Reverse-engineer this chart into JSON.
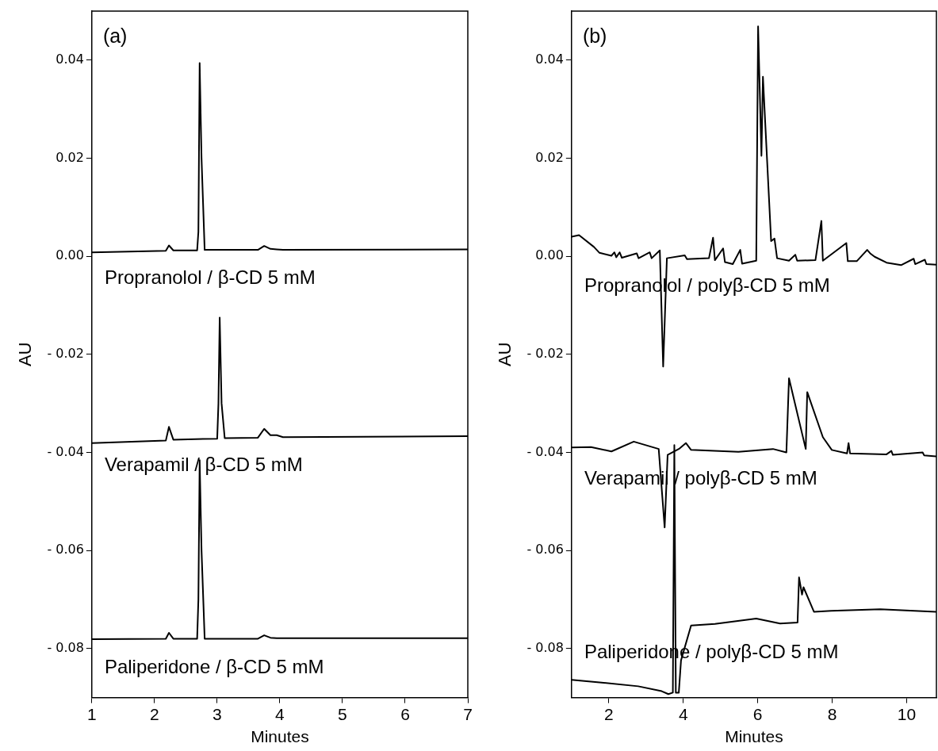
{
  "chart_data": [
    {
      "type": "line",
      "title": "(a)",
      "xlabel": "Minutes",
      "ylabel": "AU",
      "xlim": [
        1,
        7
      ],
      "xticks": [
        1,
        2,
        3,
        4,
        5,
        6,
        7
      ],
      "ylim": [
        -0.09,
        0.05
      ],
      "yticks": [
        {
          "value": 0.04,
          "label": "0.04"
        },
        {
          "value": 0.02,
          "label": "0.02"
        },
        {
          "value": 0,
          "label": "0.00"
        },
        {
          "value": -0.02,
          "label": "- 0.02"
        },
        {
          "value": -0.04,
          "label": "- 0.04"
        },
        {
          "value": -0.06,
          "label": "- 0.06"
        },
        {
          "value": -0.08,
          "label": "- 0.08"
        }
      ],
      "grid": false,
      "legend": false,
      "marker": "none",
      "line_style": "solid",
      "series": [
        {
          "name": "Propranolol / β-CD 5 mM",
          "color": "#000000",
          "x": [
            1,
            2.18,
            2.23,
            2.3,
            2.68,
            2.7,
            2.72,
            2.75,
            2.8,
            3.65,
            3.75,
            3.85,
            3.95,
            4.05,
            7
          ],
          "values": [
            0.0008,
            0.0011,
            0.0022,
            0.0012,
            0.0012,
            0.005,
            0.0394,
            0.02,
            0.0013,
            0.0013,
            0.0021,
            0.0015,
            0.0014,
            0.0013,
            0.0014
          ]
        },
        {
          "name": "Verapamil / β-CD 5 mM",
          "color": "#000000",
          "x": [
            1,
            2.18,
            2.23,
            2.3,
            3.0,
            3.02,
            3.04,
            3.07,
            3.12,
            3.65,
            3.75,
            3.85,
            3.95,
            4.05,
            7
          ],
          "values": [
            -0.0381,
            -0.0376,
            -0.0348,
            -0.0374,
            -0.0372,
            -0.03,
            -0.0125,
            -0.03,
            -0.0371,
            -0.037,
            -0.0352,
            -0.0365,
            -0.0365,
            -0.0369,
            -0.0367
          ]
        },
        {
          "name": "Paliperidone / β-CD 5 mM",
          "color": "#000000",
          "x": [
            1,
            2.18,
            2.23,
            2.3,
            2.68,
            2.7,
            2.72,
            2.75,
            2.8,
            3.65,
            3.75,
            3.85,
            3.95,
            4.05,
            7
          ],
          "values": [
            -0.0781,
            -0.078,
            -0.0768,
            -0.078,
            -0.078,
            -0.07,
            -0.0416,
            -0.06,
            -0.078,
            -0.078,
            -0.0773,
            -0.0778,
            -0.0779,
            -0.0779,
            -0.0779
          ]
        }
      ]
    },
    {
      "type": "line",
      "title": "(b)",
      "xlabel": "Minutes",
      "ylabel": "AU",
      "xlim": [
        1,
        10.8
      ],
      "xticks": [
        2,
        4,
        6,
        8,
        10
      ],
      "ylim": [
        -0.09,
        0.05
      ],
      "yticks": [
        {
          "value": 0.04,
          "label": "0.04"
        },
        {
          "value": 0.02,
          "label": "0.02"
        },
        {
          "value": 0,
          "label": "0.00"
        },
        {
          "value": -0.02,
          "label": "- 0.02"
        },
        {
          "value": -0.04,
          "label": "- 0.04"
        },
        {
          "value": -0.06,
          "label": "- 0.06"
        },
        {
          "value": -0.08,
          "label": "- 0.08"
        }
      ],
      "grid": false,
      "legend": false,
      "marker": "none",
      "line_style": "solid",
      "series": [
        {
          "name": "Propranolol / polyβ-CD 5 mM",
          "color": "#000000",
          "x": [
            1,
            1.2,
            1.6,
            1.75,
            2.07,
            2.15,
            2.2,
            2.29,
            2.35,
            2.75,
            2.8,
            3.1,
            3.15,
            3.37,
            3.46,
            3.56,
            4.04,
            4.1,
            4.69,
            4.8,
            4.85,
            5.07,
            5.12,
            5.33,
            5.53,
            5.58,
            5.96,
            6.01,
            6.1,
            6.14,
            6.36,
            6.45,
            6.52,
            6.84,
            7.01,
            7.06,
            7.55,
            7.71,
            7.75,
            8.38,
            8.42,
            8.66,
            8.94,
            9.02,
            9.14,
            9.46,
            9.85,
            10.19,
            10.23,
            10.49,
            10.53,
            10.79
          ],
          "values": [
            0.004,
            0.0043,
            0.0019,
            0.0007,
            0.0001,
            0.0008,
            -0.0002,
            0.0008,
            -0.0003,
            0.0006,
            -0.0004,
            0.0008,
            -0.0004,
            0.0012,
            -0.0225,
            -0.0004,
            0.0002,
            -0.0006,
            -0.0004,
            0.0038,
            -0.0008,
            0.0016,
            -0.0012,
            -0.0016,
            0.0013,
            -0.0015,
            -0.0009,
            0.0469,
            0.0205,
            0.0366,
            0.0031,
            0.0036,
            -0.0004,
            -0.0009,
            0.0003,
            -0.0009,
            -0.0008,
            0.0072,
            -0.0009,
            0.0027,
            -0.001,
            -0.001,
            0.0013,
            0.0006,
            -0.0001,
            -0.0013,
            -0.0018,
            -0.0005,
            -0.0016,
            -0.0007,
            -0.0016,
            -0.0017
          ]
        },
        {
          "name": "Verapamil / polyβ-CD 5 mM",
          "color": "#000000",
          "x": [
            1,
            1.52,
            2.07,
            2.67,
            3.34,
            3.5,
            3.58,
            3.9,
            4.07,
            4.21,
            5.48,
            6.41,
            6.77,
            6.84,
            7.29,
            7.33,
            7.75,
            7.99,
            8.4,
            8.44,
            8.48,
            9.46,
            9.59,
            9.63,
            10.43,
            10.47,
            10.79
          ],
          "values": [
            -0.039,
            -0.0389,
            -0.0398,
            -0.0378,
            -0.0393,
            -0.0553,
            -0.0405,
            -0.0392,
            -0.0381,
            -0.0395,
            -0.0399,
            -0.0393,
            -0.04,
            -0.0249,
            -0.0393,
            -0.0277,
            -0.0369,
            -0.0395,
            -0.0402,
            -0.0381,
            -0.0402,
            -0.0404,
            -0.0397,
            -0.0405,
            -0.04,
            -0.0406,
            -0.0408
          ]
        },
        {
          "name": "Paliperidone / polyβ-CD 5 mM",
          "color": "#000000",
          "x": [
            1,
            1.75,
            2.79,
            3.42,
            3.6,
            3.72,
            3.76,
            3.8,
            3.88,
            3.94,
            4.21,
            4.85,
            5.96,
            6.6,
            7.07,
            7.11,
            7.19,
            7.23,
            7.51,
            7.97,
            9.29,
            10.79
          ],
          "values": [
            -0.0864,
            -0.0869,
            -0.0877,
            -0.0887,
            -0.0893,
            -0.089,
            -0.0385,
            -0.089,
            -0.089,
            -0.0824,
            -0.0753,
            -0.075,
            -0.0739,
            -0.0749,
            -0.0747,
            -0.0655,
            -0.069,
            -0.0675,
            -0.0725,
            -0.0723,
            -0.072,
            -0.0725
          ]
        }
      ]
    }
  ]
}
